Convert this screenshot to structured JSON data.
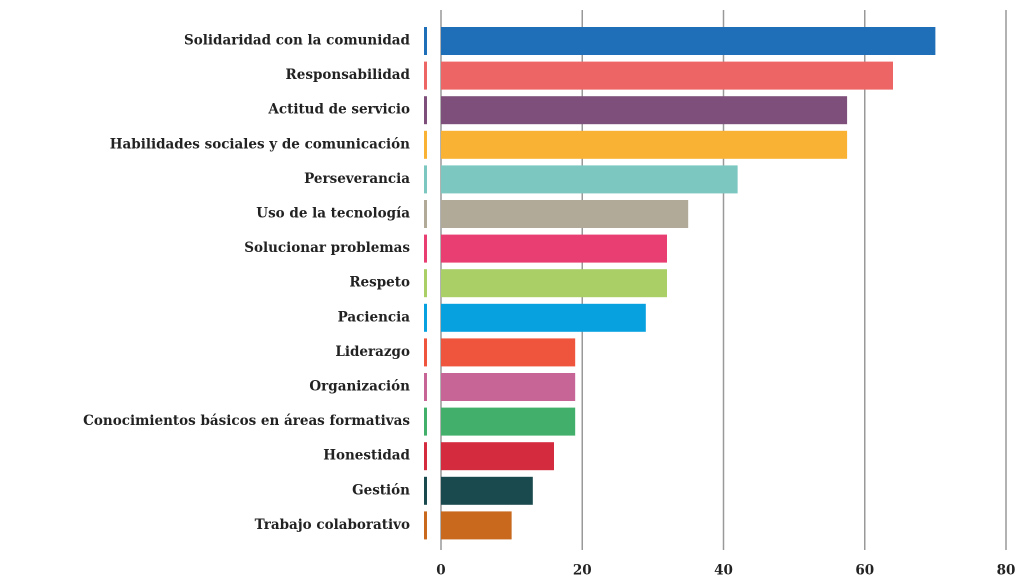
{
  "chart_data": {
    "type": "hbar",
    "categories": [
      "Solidaridad con la comunidad",
      "Responsabilidad",
      "Actitud de servicio",
      "Habilidades sociales y de comunicación",
      "Perseverancia",
      "Uso de la tecnología",
      "Solucionar problemas",
      "Respeto",
      "Paciencia",
      "Liderazgo",
      "Organización",
      "Conocimientos básicos en áreas formativas",
      "Honestidad",
      "Gestión",
      "Trabajo colaborativo"
    ],
    "values": [
      70,
      64,
      57.5,
      57.5,
      42,
      35,
      32,
      32,
      29,
      19,
      19,
      19,
      16,
      13,
      10
    ],
    "colors": [
      "#1f6fb8",
      "#ee6566",
      "#7f4f7b",
      "#f9b233",
      "#7cc8c0",
      "#b1aa98",
      "#e83e72",
      "#a9cf66",
      "#08a1e0",
      "#ee553c",
      "#c86597",
      "#42b06a",
      "#d52b3f",
      "#1b4a4e",
      "#c8691e"
    ],
    "xlim": [
      0,
      80
    ],
    "xticks": [
      0,
      20,
      40,
      60,
      80
    ],
    "grid": true
  }
}
